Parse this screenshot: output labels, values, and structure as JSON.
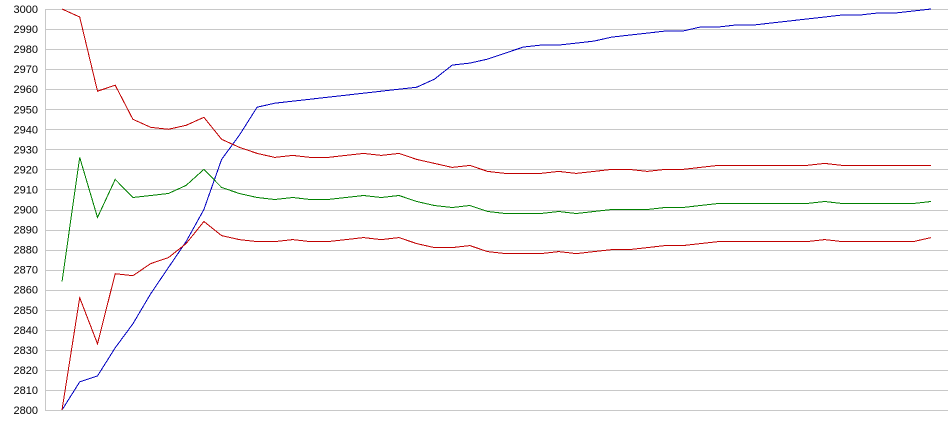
{
  "chart_data": {
    "type": "line",
    "title": "",
    "xlabel": "",
    "ylabel": "",
    "ylim": [
      2800,
      3000
    ],
    "yticks": [
      2800,
      2810,
      2820,
      2830,
      2840,
      2850,
      2860,
      2870,
      2880,
      2890,
      2900,
      2910,
      2920,
      2930,
      2940,
      2950,
      2960,
      2970,
      2980,
      2990,
      3000
    ],
    "grid": true,
    "legend": "none",
    "x": [
      1,
      2,
      3,
      4,
      5,
      6,
      7,
      8,
      9,
      10,
      11,
      12,
      13,
      14,
      15,
      16,
      17,
      18,
      19,
      20,
      21,
      22,
      23,
      24,
      25,
      26,
      27,
      28,
      29,
      30,
      31,
      32,
      33,
      34,
      35,
      36,
      37,
      38,
      39,
      40,
      41,
      42,
      43,
      44,
      45,
      46,
      47,
      48,
      49,
      50
    ],
    "series": [
      {
        "color": "#0000c0",
        "values": [
          2800,
          2814,
          2817,
          2831,
          2843,
          2858,
          2871,
          2884,
          2900,
          2925,
          2937,
          2951,
          2953,
          2954,
          2955,
          2956,
          2957,
          2958,
          2959,
          2960,
          2961,
          2965,
          2972,
          2973,
          2975,
          2978,
          2981,
          2982,
          2982,
          2983,
          2984,
          2986,
          2987,
          2988,
          2989,
          2989,
          2991,
          2991,
          2992,
          2992,
          2993,
          2994,
          2995,
          2996,
          2997,
          2997,
          2998,
          2998,
          2999,
          3000
        ]
      },
      {
        "color": "#c00000",
        "values": [
          3000,
          2996,
          2959,
          2962,
          2945,
          2941,
          2940,
          2942,
          2946,
          2935,
          2931,
          2928,
          2926,
          2927,
          2926,
          2926,
          2927,
          2928,
          2927,
          2928,
          2925,
          2923,
          2921,
          2922,
          2919,
          2918,
          2918,
          2918,
          2919,
          2918,
          2919,
          2920,
          2920,
          2919,
          2920,
          2920,
          2921,
          2922,
          2922,
          2922,
          2922,
          2922,
          2922,
          2923,
          2922,
          2922,
          2922,
          2922,
          2922,
          2922
        ]
      },
      {
        "color": "#008000",
        "values": [
          2864,
          2926,
          2896,
          2915,
          2906,
          2907,
          2908,
          2912,
          2920,
          2911,
          2908,
          2906,
          2905,
          2906,
          2905,
          2905,
          2906,
          2907,
          2906,
          2907,
          2904,
          2902,
          2901,
          2902,
          2899,
          2898,
          2898,
          2898,
          2899,
          2898,
          2899,
          2900,
          2900,
          2900,
          2901,
          2901,
          2902,
          2903,
          2903,
          2903,
          2903,
          2903,
          2903,
          2904,
          2903,
          2903,
          2903,
          2903,
          2903,
          2904
        ]
      },
      {
        "color": "#c00000",
        "values": [
          2800,
          2856,
          2833,
          2868,
          2867,
          2873,
          2876,
          2883,
          2894,
          2887,
          2885,
          2884,
          2884,
          2885,
          2884,
          2884,
          2885,
          2886,
          2885,
          2886,
          2883,
          2881,
          2881,
          2882,
          2879,
          2878,
          2878,
          2878,
          2879,
          2878,
          2879,
          2880,
          2880,
          2881,
          2882,
          2882,
          2883,
          2884,
          2884,
          2884,
          2884,
          2884,
          2884,
          2885,
          2884,
          2884,
          2884,
          2884,
          2884,
          2886
        ]
      }
    ]
  }
}
